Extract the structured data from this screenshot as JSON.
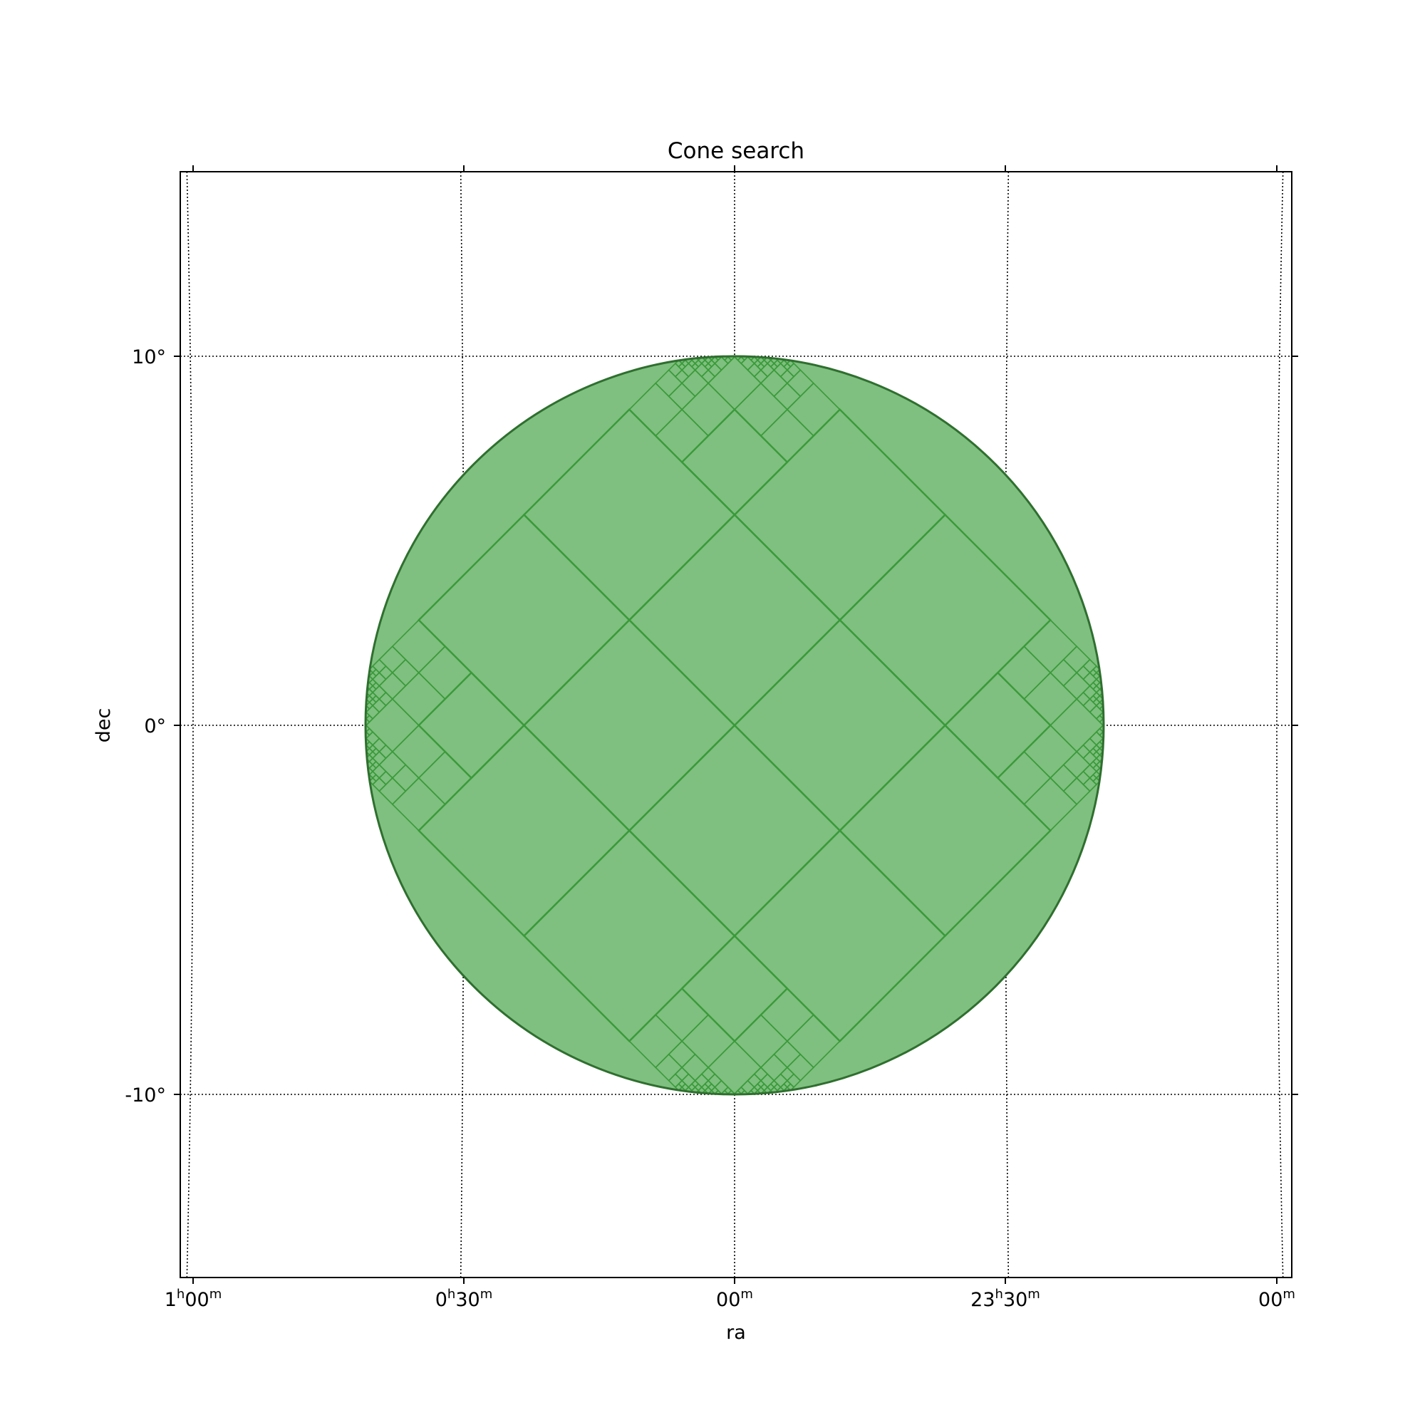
{
  "chart_data": {
    "type": "sky-coverage",
    "title": "Cone search",
    "xlabel": "ra",
    "ylabel": "dec",
    "x_ticks": [
      {
        "h": "1",
        "m": "00",
        "ra_deg": 15
      },
      {
        "h": "0",
        "m": "30",
        "ra_deg": 7.5
      },
      {
        "h": "",
        "m": "00",
        "ra_deg": 0
      },
      {
        "h": "23",
        "m": "30",
        "ra_deg": -7.5
      },
      {
        "h": "",
        "m": "00",
        "ra_deg": -15
      }
    ],
    "y_ticks": [
      {
        "label": "10°",
        "dec": 10
      },
      {
        "label": "0°",
        "dec": 0
      },
      {
        "label": "-10°",
        "dec": -10
      }
    ],
    "xlim": [
      15.4,
      -15.4
    ],
    "ylim": [
      -15,
      15
    ],
    "grid": true,
    "cone": {
      "ra_center": 0,
      "dec_center": 0,
      "radius_deg": 10
    },
    "colors": {
      "fill": "#7fbf7f",
      "edge": "#3a9a3a",
      "outline": "#2f6f2f",
      "grid": "#000000"
    }
  }
}
